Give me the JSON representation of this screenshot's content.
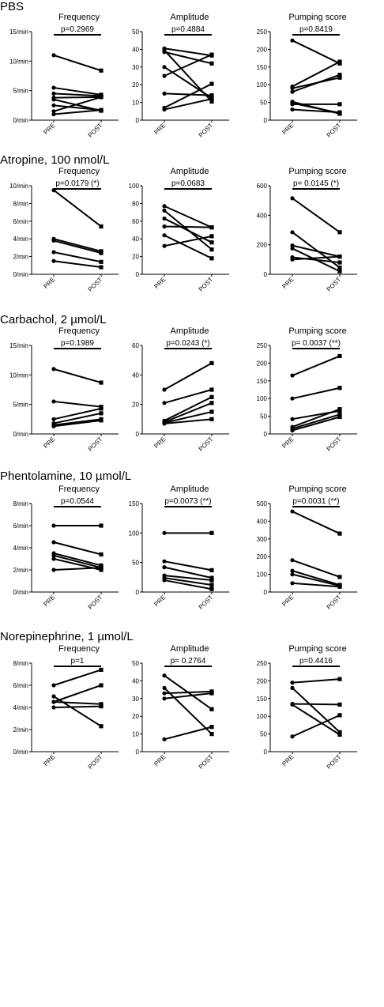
{
  "sections": [
    {
      "title": "PBS",
      "panels": [
        {
          "chart_data": {
            "type": "line",
            "title": "Frequency",
            "categories": [
              "PRE",
              "POST"
            ],
            "ylim": [
              0,
              15
            ],
            "yticks": [
              0,
              5,
              10,
              15
            ],
            "ytick_labels": [
              "0/min",
              "5/min",
              "10/min",
              "15/min"
            ],
            "p_label": "p=0.2969",
            "pairs": [
              [
                11,
                8.4
              ],
              [
                5.5,
                4.3
              ],
              [
                4.5,
                4.1
              ],
              [
                3.8,
                3.9
              ],
              [
                3.5,
                1.6
              ],
              [
                2.5,
                1.7
              ],
              [
                1.5,
                3.9
              ],
              [
                1.0,
                1.7
              ]
            ]
          }
        },
        {
          "chart_data": {
            "type": "line",
            "title": "Amplitude",
            "categories": [
              "PRE",
              "POST"
            ],
            "ylim": [
              0,
              50
            ],
            "yticks": [
              0,
              10,
              20,
              30,
              40,
              50
            ],
            "ytick_labels": [
              "0",
              "10",
              "20",
              "30",
              "40",
              "50"
            ],
            "p_label": "p=0.4884",
            "pairs": [
              [
                40.5,
                36.5
              ],
              [
                39.5,
                10.5
              ],
              [
                38.5,
                32
              ],
              [
                30,
                12.5
              ],
              [
                25,
                37
              ],
              [
                15,
                14
              ],
              [
                7,
                20.5
              ],
              [
                6,
                12
              ]
            ]
          }
        },
        {
          "chart_data": {
            "type": "line",
            "title": "Pumping score",
            "categories": [
              "PRE",
              "POST"
            ],
            "ylim": [
              0,
              250
            ],
            "yticks": [
              0,
              50,
              100,
              150,
              200,
              250
            ],
            "ytick_labels": [
              "0",
              "50",
              "100",
              "150",
              "200",
              "250"
            ],
            "p_label": "p=0.8419",
            "pairs": [
              [
                225,
                160
              ],
              [
                95,
                165
              ],
              [
                90,
                120
              ],
              [
                80,
                128
              ],
              [
                52,
                18
              ],
              [
                48,
                20
              ],
              [
                45,
                45
              ],
              [
                30,
                22
              ]
            ]
          }
        }
      ]
    },
    {
      "title": "Atropine, 100 nmol/L",
      "panels": [
        {
          "chart_data": {
            "type": "line",
            "title": "Frequency",
            "categories": [
              "PRE",
              "POST"
            ],
            "ylim": [
              0,
              10
            ],
            "yticks": [
              0,
              2,
              4,
              6,
              8,
              10
            ],
            "ytick_labels": [
              "0/min",
              "2/min",
              "4/min",
              "6/min",
              "8/min",
              "10/min"
            ],
            "p_label": "p=0.0179 (*)",
            "pairs": [
              [
                9.5,
                5.4
              ],
              [
                4.0,
                2.6
              ],
              [
                3.8,
                2.4
              ],
              [
                2.5,
                1.4
              ],
              [
                1.5,
                0.8
              ]
            ]
          }
        },
        {
          "chart_data": {
            "type": "line",
            "title": "Amplitude",
            "categories": [
              "PRE",
              "POST"
            ],
            "ylim": [
              0,
              100
            ],
            "yticks": [
              0,
              20,
              40,
              60,
              80,
              100
            ],
            "ytick_labels": [
              "0",
              "20",
              "40",
              "60",
              "80",
              "100"
            ],
            "p_label": "p=0.0683",
            "pairs": [
              [
                77,
                53
              ],
              [
                72,
                28
              ],
              [
                63,
                36
              ],
              [
                54,
                53
              ],
              [
                44,
                18
              ],
              [
                32,
                43
              ]
            ]
          }
        },
        {
          "chart_data": {
            "type": "line",
            "title": "Pumping score",
            "categories": [
              "PRE",
              "POST"
            ],
            "ylim": [
              0,
              600
            ],
            "yticks": [
              0,
              200,
              400,
              600
            ],
            "ytick_labels": [
              "0",
              "200",
              "400",
              "600"
            ],
            "p_label": "p= 0.0145  (*)",
            "pairs": [
              [
                515,
                285
              ],
              [
                285,
                45
              ],
              [
                195,
                120
              ],
              [
                175,
                20
              ],
              [
                115,
                80
              ],
              [
                100,
                120
              ]
            ]
          }
        }
      ]
    },
    {
      "title": "Carbachol, 2 µmol/L",
      "panels": [
        {
          "chart_data": {
            "type": "line",
            "title": "Frequency",
            "categories": [
              "PRE",
              "POST"
            ],
            "ylim": [
              0,
              15
            ],
            "yticks": [
              0,
              5,
              10,
              15
            ],
            "ytick_labels": [
              "0/min",
              "5/min",
              "10/min",
              "15/min"
            ],
            "p_label": "p=0.1989",
            "pairs": [
              [
                11,
                8.7
              ],
              [
                5.5,
                4.6
              ],
              [
                2.5,
                4.3
              ],
              [
                1.8,
                3.5
              ],
              [
                1.5,
                2.5
              ],
              [
                1.3,
                2.3
              ]
            ]
          }
        },
        {
          "chart_data": {
            "type": "line",
            "title": "Amplitude",
            "categories": [
              "PRE",
              "POST"
            ],
            "ylim": [
              0,
              60
            ],
            "yticks": [
              0,
              20,
              40,
              60
            ],
            "ytick_labels": [
              "0",
              "20",
              "40",
              "60"
            ],
            "p_label": "p=0.0243 (*)",
            "pairs": [
              [
                30,
                48
              ],
              [
                21,
                30
              ],
              [
                9,
                25
              ],
              [
                8,
                21
              ],
              [
                7.5,
                15
              ],
              [
                7,
                10
              ]
            ]
          }
        },
        {
          "chart_data": {
            "type": "line",
            "title": "Pumping score",
            "categories": [
              "PRE",
              "POST"
            ],
            "ylim": [
              0,
              250
            ],
            "yticks": [
              0,
              50,
              100,
              150,
              200,
              250
            ],
            "ytick_labels": [
              "0",
              "50",
              "100",
              "150",
              "200",
              "250"
            ],
            "p_label": "p= 0.0037 (**)",
            "pairs": [
              [
                165,
                220
              ],
              [
                100,
                130
              ],
              [
                42,
                65
              ],
              [
                20,
                70
              ],
              [
                15,
                55
              ],
              [
                10,
                48
              ]
            ]
          }
        }
      ]
    },
    {
      "title": "Phentolamine, 10 µmol/L",
      "panels": [
        {
          "chart_data": {
            "type": "line",
            "title": "Frequency",
            "categories": [
              "PRE",
              "POST"
            ],
            "ylim": [
              0,
              8
            ],
            "yticks": [
              0,
              2,
              4,
              6,
              8
            ],
            "ytick_labels": [
              "0/min",
              "2/min",
              "4/min",
              "6/min",
              "8/min"
            ],
            "p_label": "p=0.0544",
            "pairs": [
              [
                6.0,
                6.0
              ],
              [
                4.5,
                3.4
              ],
              [
                3.5,
                2.4
              ],
              [
                3.3,
                2.2
              ],
              [
                3.0,
                2.0
              ],
              [
                2.0,
                2.2
              ]
            ]
          }
        },
        {
          "chart_data": {
            "type": "line",
            "title": "Amplitude",
            "categories": [
              "PRE",
              "POST"
            ],
            "ylim": [
              0,
              150
            ],
            "yticks": [
              0,
              50,
              100,
              150
            ],
            "ytick_labels": [
              "0",
              "50",
              "100",
              "150"
            ],
            "p_label": "p=0.0073 (**)",
            "pairs": [
              [
                100,
                100
              ],
              [
                52,
                37
              ],
              [
                42,
                24
              ],
              [
                28,
                20
              ],
              [
                24,
                12
              ],
              [
                20,
                5
              ]
            ]
          }
        },
        {
          "chart_data": {
            "type": "line",
            "title": "Pumping score",
            "categories": [
              "PRE",
              "POST"
            ],
            "ylim": [
              0,
              500
            ],
            "yticks": [
              0,
              100,
              200,
              300,
              400,
              500
            ],
            "ytick_labels": [
              "0",
              "100",
              "200",
              "300",
              "400",
              "500"
            ],
            "p_label": "p=0.0031 (**)",
            "pairs": [
              [
                455,
                330
              ],
              [
                180,
                85
              ],
              [
                120,
                40
              ],
              [
                100,
                35
              ],
              [
                50,
                30
              ]
            ]
          }
        }
      ]
    },
    {
      "title": "Norepinephrine, 1 µmol/L",
      "panels": [
        {
          "chart_data": {
            "type": "line",
            "title": "Frequency",
            "categories": [
              "PRE",
              "POST"
            ],
            "ylim": [
              0,
              8
            ],
            "yticks": [
              0,
              2,
              4,
              6,
              8
            ],
            "ytick_labels": [
              "0/min",
              "2/min",
              "4/min",
              "6/min",
              "8/min"
            ],
            "p_label": "p=1",
            "pairs": [
              [
                6.0,
                7.4
              ],
              [
                5.0,
                2.3
              ],
              [
                4.5,
                4.3
              ],
              [
                4.5,
                6.0
              ],
              [
                4.0,
                4.1
              ]
            ]
          }
        },
        {
          "chart_data": {
            "type": "line",
            "title": "Amplitude",
            "categories": [
              "PRE",
              "POST"
            ],
            "ylim": [
              0,
              50
            ],
            "yticks": [
              0,
              10,
              20,
              30,
              40,
              50
            ],
            "ytick_labels": [
              "0",
              "10",
              "20",
              "30",
              "40",
              "50"
            ],
            "p_label": "p= 0.2764",
            "pairs": [
              [
                43,
                24
              ],
              [
                36,
                10
              ],
              [
                33,
                34
              ],
              [
                30,
                33
              ],
              [
                7,
                14
              ]
            ]
          }
        },
        {
          "chart_data": {
            "type": "line",
            "title": "Pumping score",
            "categories": [
              "PRE",
              "POST"
            ],
            "ylim": [
              0,
              250
            ],
            "yticks": [
              0,
              50,
              100,
              150,
              200,
              250
            ],
            "ytick_labels": [
              "0",
              "50",
              "100",
              "150",
              "200",
              "250"
            ],
            "p_label": "p=0.4416",
            "pairs": [
              [
                195,
                205
              ],
              [
                180,
                55
              ],
              [
                135,
                133
              ],
              [
                133,
                48
              ],
              [
                43,
                103
              ]
            ]
          }
        }
      ]
    }
  ]
}
